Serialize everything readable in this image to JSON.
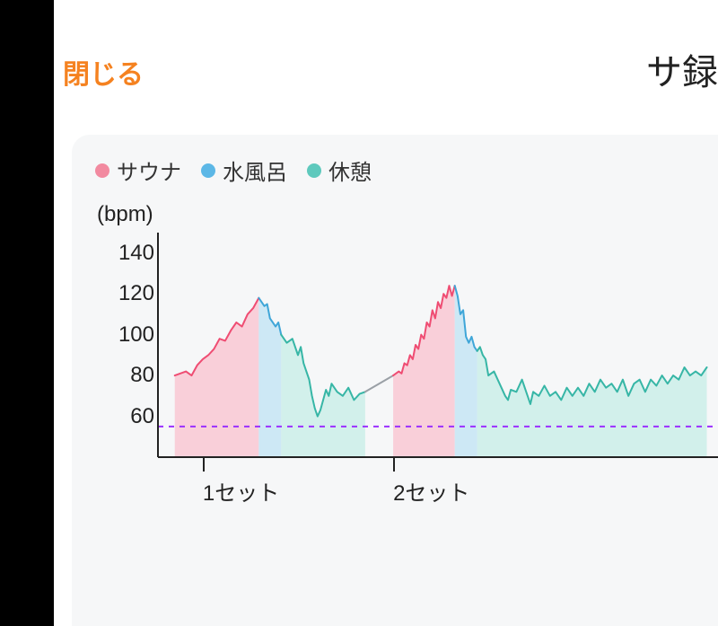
{
  "header": {
    "close_label": "閉じる",
    "title": "サ録"
  },
  "legend": [
    {
      "label": "サウナ",
      "color": "#f28aa0"
    },
    {
      "label": "水風呂",
      "color": "#5cb7e6"
    },
    {
      "label": "休憩",
      "color": "#5ec9bd"
    }
  ],
  "chart": {
    "type": "area-line",
    "y_unit": "(bpm)",
    "y_min": 40,
    "y_max": 150,
    "y_ticks": [
      60,
      80,
      100,
      120,
      140
    ],
    "axis_color": "#222222",
    "axis_width": 2,
    "baseline": {
      "value": 55,
      "color": "#9b30ff",
      "dash": "6 6",
      "width": 2
    },
    "background_color": "#f6f7f8",
    "label_fontsize": 24,
    "x_ticks": [
      {
        "x": 0.08,
        "label": "1セット"
      },
      {
        "x": 0.42,
        "label": "2セット"
      }
    ],
    "segments": [
      {
        "kind": "sauna",
        "stroke": "#ef4d73",
        "fill": "#f9c2cf",
        "stroke_width": 2,
        "points": [
          [
            0.03,
            80
          ],
          [
            0.05,
            82
          ],
          [
            0.06,
            80
          ],
          [
            0.07,
            85
          ],
          [
            0.08,
            88
          ],
          [
            0.09,
            90
          ],
          [
            0.1,
            93
          ],
          [
            0.11,
            98
          ],
          [
            0.12,
            97
          ],
          [
            0.13,
            102
          ],
          [
            0.14,
            106
          ],
          [
            0.15,
            104
          ],
          [
            0.16,
            110
          ],
          [
            0.17,
            113
          ],
          [
            0.18,
            118
          ]
        ]
      },
      {
        "kind": "water",
        "stroke": "#3fa6d8",
        "fill": "#bfe3f4",
        "stroke_width": 2,
        "points": [
          [
            0.18,
            118
          ],
          [
            0.19,
            114
          ],
          [
            0.195,
            115
          ],
          [
            0.2,
            108
          ],
          [
            0.21,
            104
          ],
          [
            0.215,
            106
          ],
          [
            0.22,
            100
          ]
        ]
      },
      {
        "kind": "rest",
        "stroke": "#37b6a6",
        "fill": "#c6ede7",
        "stroke_width": 2,
        "points": [
          [
            0.22,
            100
          ],
          [
            0.23,
            96
          ],
          [
            0.24,
            98
          ],
          [
            0.25,
            90
          ],
          [
            0.255,
            94
          ],
          [
            0.26,
            86
          ],
          [
            0.27,
            78
          ],
          [
            0.275,
            70
          ],
          [
            0.28,
            64
          ],
          [
            0.285,
            60
          ],
          [
            0.29,
            63
          ],
          [
            0.3,
            73
          ],
          [
            0.305,
            70
          ],
          [
            0.31,
            76
          ],
          [
            0.32,
            72
          ],
          [
            0.33,
            70
          ],
          [
            0.34,
            74
          ],
          [
            0.35,
            68
          ],
          [
            0.36,
            71
          ],
          [
            0.37,
            72
          ]
        ]
      },
      {
        "kind": "gap",
        "stroke": "#9aa0a6",
        "fill": "none",
        "stroke_width": 2,
        "points": [
          [
            0.37,
            72
          ],
          [
            0.42,
            80
          ]
        ]
      },
      {
        "kind": "sauna",
        "stroke": "#ef4d73",
        "fill": "#f9c2cf",
        "stroke_width": 2,
        "points": [
          [
            0.42,
            80
          ],
          [
            0.43,
            82
          ],
          [
            0.435,
            81
          ],
          [
            0.44,
            86
          ],
          [
            0.445,
            85
          ],
          [
            0.45,
            90
          ],
          [
            0.455,
            88
          ],
          [
            0.46,
            95
          ],
          [
            0.465,
            93
          ],
          [
            0.47,
            100
          ],
          [
            0.475,
            98
          ],
          [
            0.48,
            106
          ],
          [
            0.485,
            104
          ],
          [
            0.49,
            112
          ],
          [
            0.495,
            108
          ],
          [
            0.5,
            116
          ],
          [
            0.505,
            113
          ],
          [
            0.51,
            120
          ],
          [
            0.515,
            118
          ],
          [
            0.52,
            124
          ],
          [
            0.525,
            119
          ],
          [
            0.53,
            124
          ]
        ]
      },
      {
        "kind": "water",
        "stroke": "#3fa6d8",
        "fill": "#bfe3f4",
        "stroke_width": 2,
        "points": [
          [
            0.53,
            124
          ],
          [
            0.535,
            119
          ],
          [
            0.54,
            110
          ],
          [
            0.545,
            112
          ],
          [
            0.55,
            99
          ],
          [
            0.555,
            96
          ],
          [
            0.56,
            99
          ],
          [
            0.565,
            94
          ],
          [
            0.57,
            92
          ]
        ]
      },
      {
        "kind": "rest",
        "stroke": "#37b6a6",
        "fill": "#c6ede7",
        "stroke_width": 2,
        "points": [
          [
            0.57,
            92
          ],
          [
            0.575,
            94
          ],
          [
            0.58,
            90
          ],
          [
            0.585,
            88
          ],
          [
            0.59,
            80
          ],
          [
            0.6,
            82
          ],
          [
            0.61,
            76
          ],
          [
            0.62,
            70
          ],
          [
            0.625,
            68
          ],
          [
            0.63,
            73
          ],
          [
            0.64,
            72
          ],
          [
            0.65,
            78
          ],
          [
            0.66,
            70
          ],
          [
            0.665,
            66
          ],
          [
            0.67,
            72
          ],
          [
            0.68,
            70
          ],
          [
            0.69,
            75
          ],
          [
            0.7,
            70
          ],
          [
            0.71,
            72
          ],
          [
            0.72,
            68
          ],
          [
            0.73,
            74
          ],
          [
            0.74,
            70
          ],
          [
            0.75,
            74
          ],
          [
            0.76,
            70
          ],
          [
            0.77,
            76
          ],
          [
            0.78,
            72
          ],
          [
            0.79,
            78
          ],
          [
            0.8,
            74
          ],
          [
            0.81,
            76
          ],
          [
            0.82,
            72
          ],
          [
            0.83,
            78
          ],
          [
            0.84,
            70
          ],
          [
            0.85,
            76
          ],
          [
            0.86,
            78
          ],
          [
            0.87,
            72
          ],
          [
            0.88,
            78
          ],
          [
            0.89,
            75
          ],
          [
            0.9,
            80
          ],
          [
            0.91,
            76
          ],
          [
            0.92,
            80
          ],
          [
            0.93,
            78
          ],
          [
            0.94,
            84
          ],
          [
            0.95,
            80
          ],
          [
            0.96,
            82
          ],
          [
            0.97,
            80
          ],
          [
            0.98,
            84
          ]
        ]
      }
    ]
  }
}
